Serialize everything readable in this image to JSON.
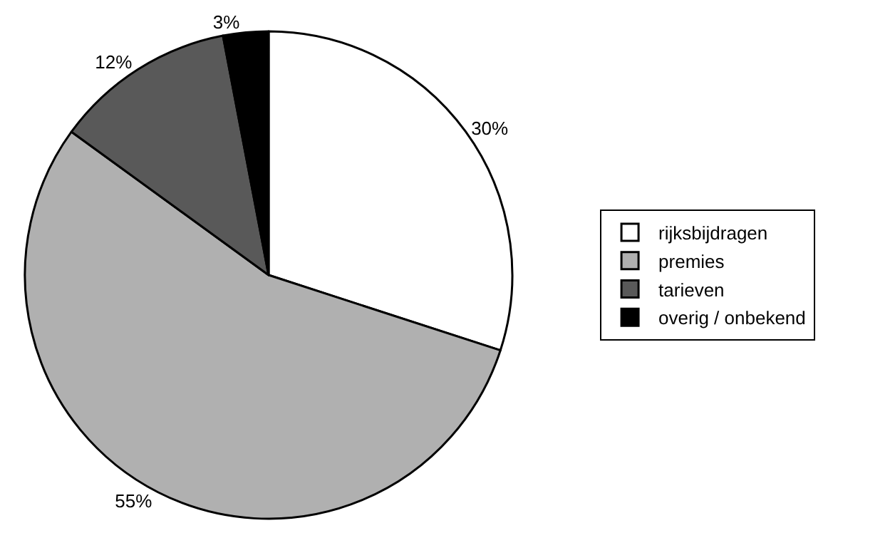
{
  "chart_data": {
    "type": "pie",
    "categories": [
      "rijksbijdragen",
      "premies",
      "tarieven",
      "overig / onbekend"
    ],
    "values": [
      30,
      55,
      12,
      3
    ],
    "colors": [
      "#ffffff",
      "#b0b0b0",
      "#595959",
      "#000000"
    ],
    "value_labels": [
      "30%",
      "55%",
      "12%",
      "3%"
    ],
    "legend": "right"
  }
}
